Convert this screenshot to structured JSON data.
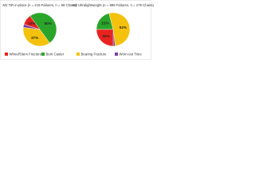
{
  "chart_data": [
    {
      "type": "pie",
      "title": "M2 TiR in-place (n = 219 Failures, n = 69 Chairs)",
      "values": [
        10,
        50,
        37,
        3
      ],
      "value_labels": [
        "10%",
        "50%",
        "37%",
        null
      ]
    },
    {
      "type": "pie",
      "title": "M2 Ultralightweight (n = 885 Failures, n = 179 Chairs)",
      "values": [
        25,
        21,
        52,
        2
      ],
      "value_labels": [
        "25%",
        "21%",
        "52%",
        null
      ]
    }
  ],
  "legend": {
    "categories": [
      "Wheel/Stem Fracture",
      "Bent Caster",
      "Bearing Fracture",
      "Worn-out Tires"
    ],
    "colors": [
      "#e8231f",
      "#2aa52a",
      "#f4c20d",
      "#7b3fa0"
    ]
  }
}
